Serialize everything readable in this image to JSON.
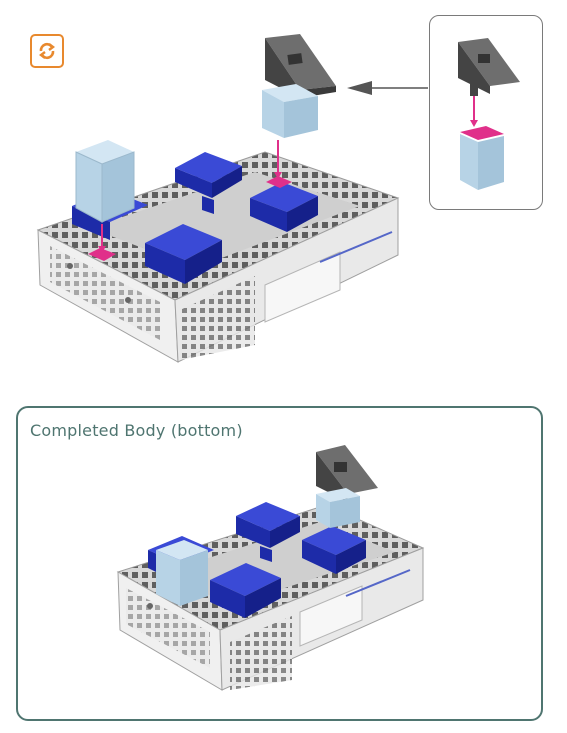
{
  "completed_panel": {
    "title": "Completed Body (bottom)"
  },
  "icons": {
    "rotate": "rotate-icon",
    "arrow": "arrow-left-icon"
  },
  "colors": {
    "badge": "#e8892e",
    "panel_border": "#4f7570",
    "blue_brick": "#1f2fb8",
    "light_brick": "#b7d3e6",
    "dark_brick": "#5a5a5a",
    "connector": "#e0308a",
    "base": "#dcdcdc"
  }
}
